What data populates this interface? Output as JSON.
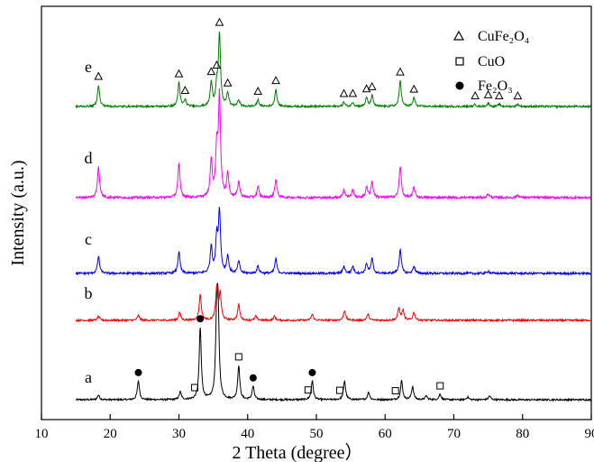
{
  "chart_data": {
    "type": "line",
    "title": "",
    "xlabel": "2 Theta (degree）",
    "ylabel": "Intensity (a.u.)",
    "xlim": [
      10,
      90
    ],
    "xticks": [
      10,
      20,
      30,
      40,
      50,
      60,
      70,
      80,
      90
    ],
    "y_ticks_shown": false,
    "grid": false,
    "legend_position": "top-right",
    "legend": [
      {
        "marker": "triangle-open",
        "label": "CuFe₂O₄"
      },
      {
        "marker": "square-open",
        "label": "CuO"
      },
      {
        "marker": "circle-filled",
        "label": "Fe₂O₃"
      }
    ],
    "series": [
      {
        "name": "a",
        "color": "#000000",
        "baseline": 0.0,
        "peaks": [
          [
            18.3,
            0.25
          ],
          [
            24.1,
            1.0
          ],
          [
            30.2,
            0.4
          ],
          [
            33.1,
            3.8
          ],
          [
            35.5,
            4.0
          ],
          [
            35.7,
            4.0
          ],
          [
            38.7,
            1.8
          ],
          [
            40.8,
            0.7
          ],
          [
            49.4,
            1.0
          ],
          [
            54.1,
            1.0
          ],
          [
            57.6,
            0.4
          ],
          [
            62.4,
            1.0
          ],
          [
            64.0,
            0.7
          ],
          [
            66.0,
            0.2
          ],
          [
            68.0,
            0.3
          ],
          [
            72.0,
            0.15
          ],
          [
            75.2,
            0.2
          ]
        ]
      },
      {
        "name": "b",
        "color": "#ff0000",
        "baseline": 0.0,
        "peaks": [
          [
            18.3,
            0.2
          ],
          [
            24.1,
            0.25
          ],
          [
            30.1,
            0.4
          ],
          [
            33.1,
            1.3
          ],
          [
            35.5,
            1.6
          ],
          [
            36.0,
            1.3
          ],
          [
            38.7,
            0.8
          ],
          [
            41.2,
            0.2
          ],
          [
            43.9,
            0.2
          ],
          [
            49.4,
            0.3
          ],
          [
            54.1,
            0.5
          ],
          [
            57.5,
            0.3
          ],
          [
            62.0,
            0.6
          ],
          [
            62.6,
            0.5
          ],
          [
            64.2,
            0.4
          ]
        ]
      },
      {
        "name": "c",
        "color": "#0000ff",
        "baseline": 0.0,
        "peaks": [
          [
            18.3,
            0.7
          ],
          [
            30.0,
            0.9
          ],
          [
            34.7,
            1.1
          ],
          [
            35.5,
            1.4
          ],
          [
            35.9,
            2.5
          ],
          [
            37.1,
            0.7
          ],
          [
            38.7,
            0.5
          ],
          [
            41.5,
            0.3
          ],
          [
            44.1,
            0.6
          ],
          [
            54.0,
            0.3
          ],
          [
            55.3,
            0.3
          ],
          [
            57.3,
            0.4
          ],
          [
            58.1,
            0.6
          ],
          [
            62.2,
            1.0
          ],
          [
            64.2,
            0.3
          ],
          [
            75.0,
            0.1
          ]
        ]
      },
      {
        "name": "d",
        "color": "#ff00ff",
        "baseline": 0.0,
        "peaks": [
          [
            18.3,
            1.2
          ],
          [
            30.0,
            1.3
          ],
          [
            34.7,
            1.4
          ],
          [
            35.5,
            1.8
          ],
          [
            35.9,
            3.8
          ],
          [
            37.1,
            0.9
          ],
          [
            38.7,
            0.6
          ],
          [
            41.5,
            0.4
          ],
          [
            44.1,
            0.7
          ],
          [
            54.0,
            0.3
          ],
          [
            55.3,
            0.3
          ],
          [
            57.3,
            0.4
          ],
          [
            58.1,
            0.6
          ],
          [
            62.2,
            1.2
          ],
          [
            64.2,
            0.4
          ],
          [
            75.0,
            0.15
          ],
          [
            79.3,
            0.1
          ]
        ]
      },
      {
        "name": "e",
        "color": "#008000",
        "baseline": 0.0,
        "peaks": [
          [
            18.3,
            1.0
          ],
          [
            30.0,
            1.1
          ],
          [
            30.9,
            0.3
          ],
          [
            34.7,
            1.1
          ],
          [
            35.5,
            0.9
          ],
          [
            35.9,
            3.3
          ],
          [
            37.1,
            0.6
          ],
          [
            38.7,
            0.3
          ],
          [
            41.5,
            0.3
          ],
          [
            44.1,
            0.8
          ],
          [
            54.0,
            0.2
          ],
          [
            55.3,
            0.2
          ],
          [
            57.3,
            0.4
          ],
          [
            58.1,
            0.5
          ],
          [
            62.2,
            1.2
          ],
          [
            64.2,
            0.4
          ],
          [
            73.1,
            0.1
          ],
          [
            75.0,
            0.15
          ],
          [
            76.6,
            0.1
          ],
          [
            79.3,
            0.1
          ]
        ]
      }
    ],
    "phase_markers": {
      "a": [
        {
          "x": 24.1,
          "marker": "circle-filled"
        },
        {
          "x": 33.1,
          "marker": "circle-filled"
        },
        {
          "x": 40.8,
          "marker": "circle-filled"
        },
        {
          "x": 49.4,
          "marker": "circle-filled"
        },
        {
          "x": 32.3,
          "marker": "square-open"
        },
        {
          "x": 38.7,
          "marker": "square-open"
        },
        {
          "x": 48.8,
          "marker": "square-open"
        },
        {
          "x": 53.4,
          "marker": "square-open"
        },
        {
          "x": 61.5,
          "marker": "square-open"
        },
        {
          "x": 68.0,
          "marker": "square-open"
        }
      ],
      "e": [
        {
          "x": 18.3,
          "marker": "triangle-open"
        },
        {
          "x": 30.0,
          "marker": "triangle-open"
        },
        {
          "x": 30.9,
          "marker": "triangle-open"
        },
        {
          "x": 34.7,
          "marker": "triangle-open"
        },
        {
          "x": 35.5,
          "marker": "triangle-open"
        },
        {
          "x": 35.9,
          "marker": "triangle-open"
        },
        {
          "x": 37.1,
          "marker": "triangle-open"
        },
        {
          "x": 41.5,
          "marker": "triangle-open"
        },
        {
          "x": 44.1,
          "marker": "triangle-open"
        },
        {
          "x": 54.0,
          "marker": "triangle-open"
        },
        {
          "x": 55.3,
          "marker": "triangle-open"
        },
        {
          "x": 57.3,
          "marker": "triangle-open"
        },
        {
          "x": 58.1,
          "marker": "triangle-open"
        },
        {
          "x": 62.2,
          "marker": "triangle-open"
        },
        {
          "x": 64.2,
          "marker": "triangle-open"
        },
        {
          "x": 73.1,
          "marker": "triangle-open"
        },
        {
          "x": 75.0,
          "marker": "triangle-open"
        },
        {
          "x": 76.6,
          "marker": "triangle-open"
        },
        {
          "x": 79.3,
          "marker": "triangle-open"
        }
      ]
    }
  }
}
